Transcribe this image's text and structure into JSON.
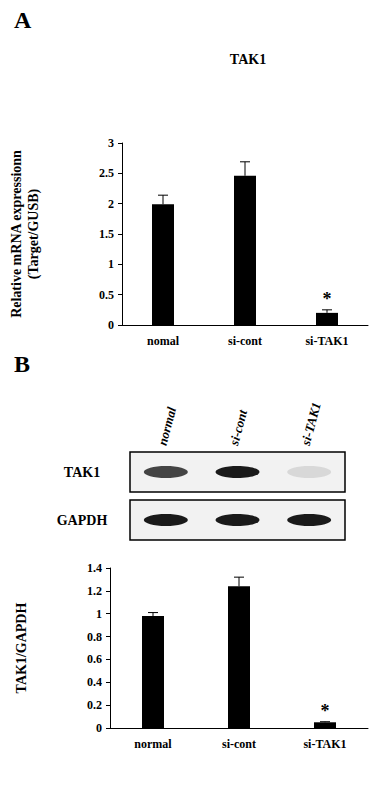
{
  "chart_data": [
    {
      "type": "bar",
      "panel_label": "A",
      "title": "TAK1",
      "ylabel": "Relative mRNA expressionn (Target/GUSB)",
      "categories": [
        "nomal",
        "si-cont",
        "si-TAK1"
      ],
      "values": [
        1.99,
        2.46,
        0.2
      ],
      "errors": [
        0.15,
        0.23,
        0.05
      ],
      "color": "#000000",
      "ylim": [
        0,
        3
      ],
      "yticks": [
        0,
        0.5,
        1,
        1.5,
        2,
        2.5,
        3
      ],
      "grid": false,
      "annotations": [
        {
          "category": "si-TAK1",
          "text": "*"
        }
      ]
    },
    {
      "type": "bar",
      "panel_label": "B",
      "ylabel": "TAK1/GAPDH",
      "categories": [
        "normal",
        "si-cont",
        "si-TAK1"
      ],
      "values": [
        0.98,
        1.24,
        0.05
      ],
      "errors": [
        0.03,
        0.08,
        0.005
      ],
      "color": "#000000",
      "ylim": [
        0,
        1.4
      ],
      "yticks": [
        0,
        0.2,
        0.4,
        0.6,
        0.8,
        1,
        1.2,
        1.4
      ],
      "grid": false,
      "annotations": [
        {
          "category": "si-TAK1",
          "text": "*"
        }
      ]
    }
  ],
  "blot": {
    "lanes": [
      "normal",
      "si-cont",
      "si-TAK1"
    ],
    "rows": [
      "TAK1",
      "GAPDH"
    ]
  }
}
